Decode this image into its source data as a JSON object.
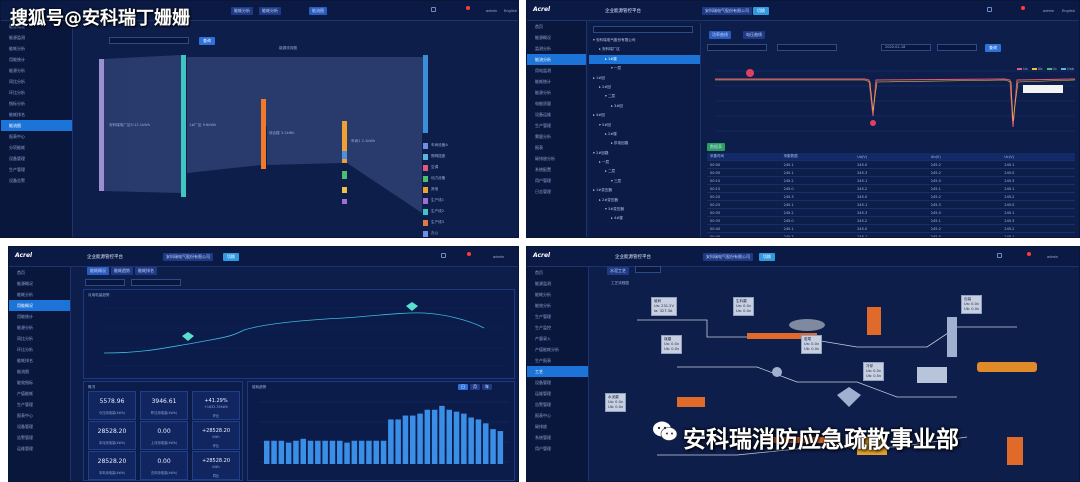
{
  "watermark_top": "搜狐号@安科瑞丁姗姗",
  "watermark_bottom": "安科瑞消防应急疏散事业部",
  "common": {
    "logo": "Acrel",
    "platform_title": "企业能源管控平台",
    "company": "安科瑞电气股份有限公司",
    "user": "admin",
    "english": "English"
  },
  "panel1": {
    "tabs": [
      "能耗分析",
      "能耗分析",
      "能流图"
    ],
    "chart_title": "能源流向图",
    "query_button": "查询",
    "sidebar": [
      "能源概况",
      "能源监测",
      "能耗分析",
      "用能统计",
      "能源分析",
      "同比分析",
      "环比分析",
      "指标分析",
      "能耗排名",
      "能流图",
      "报表中心",
      "分项能耗",
      "设备管理",
      "生产管理",
      "设备告警"
    ],
    "active_item": 9,
    "nodes": [
      "安科瑞电厂区5:12.1kWh",
      "1#厂区 9.6kWh",
      "综合楼 3.2kWh",
      "车间1 2.1kWh"
    ],
    "right_labels": [
      "车间设备A",
      "照明插座",
      "空调",
      "动力设备",
      "其他",
      "生产线1",
      "生产线2",
      "生产线3",
      "办公",
      "食堂",
      "宿舍",
      "仓库"
    ]
  },
  "panel2": {
    "tree_title": "安科瑞电气股份有限公司",
    "tree": [
      "安科瑞电气股份有限公司",
      "安科瑞厂区",
      "1#楼",
      "一层",
      "1#回",
      "2#回",
      "二层",
      "3#回",
      "4#回",
      "5#回",
      "2#楼",
      "供电回路",
      "2#回路",
      "一层",
      "二层",
      "三层",
      "1#变压器",
      "2#变压器",
      "3#变压器",
      "4#楼"
    ],
    "tabs": [
      "功率曲线",
      "电压曲线"
    ],
    "date": "2020-02-18",
    "search_button": "查询",
    "legend": [
      "Ua",
      "Ub",
      "Uc",
      "Uab"
    ],
    "table_title": "数据表",
    "table_headers": [
      "采集时间",
      "采集数据",
      "Ua(V)",
      "Ub(V)",
      "Uc(V)"
    ],
    "table_rows": [
      [
        "00:00",
        "245.1",
        "245.0",
        "245.2",
        "245.1"
      ],
      [
        "00:05",
        "245.1",
        "245.3",
        "245.2",
        "245.0"
      ],
      [
        "00:10",
        "245.2",
        "245.1",
        "245.0",
        "245.3"
      ],
      [
        "00:15",
        "245.0",
        "245.2",
        "245.1",
        "245.1"
      ],
      [
        "00:20",
        "245.3",
        "245.0",
        "245.2",
        "245.2"
      ],
      [
        "00:25",
        "245.1",
        "245.1",
        "245.3",
        "245.0"
      ],
      [
        "00:30",
        "245.2",
        "245.3",
        "245.0",
        "245.1"
      ],
      [
        "00:35",
        "245.0",
        "245.2",
        "245.1",
        "245.3"
      ],
      [
        "00:40",
        "245.1",
        "245.0",
        "245.2",
        "245.2"
      ],
      [
        "00:45",
        "245.3",
        "245.1",
        "245.0",
        "245.1"
      ]
    ],
    "sidebar": [
      "首页",
      "能源概况",
      "监测分析",
      "能流分析",
      "用电监测",
      "能耗统计",
      "能源分析",
      "电能质量",
      "设备运维",
      "生产管理",
      "需量分析",
      "报表",
      "碳排放分析",
      "系统配置",
      "用户管理",
      "日志管理"
    ],
    "active_item": 3
  },
  "panel3": {
    "tabs": [
      "能耗概况",
      "能耗趋势",
      "能耗排名"
    ],
    "line_title": "月用电量趋势",
    "kpi_title": "概况",
    "bar_title": "能耗趋势",
    "kpis": [
      {
        "value": "5578.96",
        "label": "今日用电量(kWh)"
      },
      {
        "value": "3946.61",
        "label": "昨日用电量(kWh)"
      },
      {
        "value": "+41.29%",
        "label": "环比",
        "extra": "+1632.35kWh"
      },
      {
        "value": "28528.20",
        "label": "本月用电量(kWh)"
      },
      {
        "value": "0.00",
        "label": "上月用电量(kWh)"
      },
      {
        "value": "+28528.20",
        "label": "环比",
        "extra": "kWh"
      },
      {
        "value": "28528.20",
        "label": "本年用电量(kWh)"
      },
      {
        "value": "0.00",
        "label": "去年用电量(kWh)"
      },
      {
        "value": "+28528.20",
        "label": "同比",
        "extra": "kWh"
      }
    ],
    "sidebar": [
      "首页",
      "能源概况",
      "能耗分析",
      "用能概况",
      "用能统计",
      "能源分析",
      "同比分析",
      "环比分析",
      "能耗排名",
      "能流图",
      "能效指标",
      "产值能耗",
      "生产管理",
      "报表中心",
      "设备管理",
      "告警管理",
      "运维管理"
    ],
    "active_item": 3,
    "bar_values": [
      12,
      12,
      12,
      11,
      12,
      13,
      12,
      12,
      12,
      12,
      12,
      11,
      12,
      12,
      12,
      12,
      12,
      23,
      23,
      25,
      25,
      26,
      28,
      28,
      30,
      28,
      27,
      26,
      24,
      23,
      21,
      18,
      17
    ]
  },
  "panel4": {
    "tabs": [
      "水泥工艺",
      "工艺流程图"
    ],
    "sidebar": [
      "首页",
      "能源监测",
      "能耗分析",
      "能效分析",
      "生产管理",
      "生产监控",
      "产量录入",
      "产值能耗分析",
      "生产报表",
      "工艺",
      "设备管理",
      "运维管理",
      "告警管理",
      "报表中心",
      "碳排放",
      "系统管理",
      "用户管理"
    ],
    "active_item": 9,
    "boxes": [
      {
        "title": "破碎",
        "l1": "Ua: 231.2V",
        "l2": "Ia: 327.3A"
      },
      {
        "title": "生料磨",
        "l1": "Ua: 0.0v",
        "l2": "Ua: 0.0v"
      },
      {
        "title": "煤磨",
        "l1": "Ua: 0.0v",
        "l2": "Ub: 0.0v"
      },
      {
        "title": "窑尾",
        "l1": "Ua: 0.0v",
        "l2": "Ub: 0.0v"
      },
      {
        "title": "冷却",
        "l1": "Ua: 0.0v",
        "l2": "Ub: 0.0v"
      },
      {
        "title": "水泥磨",
        "l1": "Ua: 0.0v",
        "l2": "Ub: 0.0v"
      },
      {
        "title": "包装",
        "l1": "Ua: 0.0v",
        "l2": "Ub: 0.0v"
      }
    ]
  }
}
